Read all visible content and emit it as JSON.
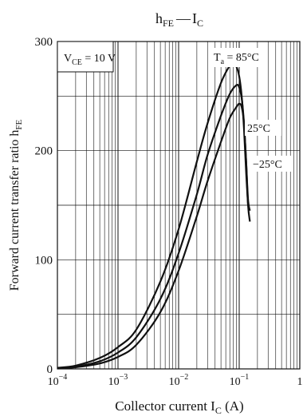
{
  "chart_data": {
    "type": "line",
    "title": "h_FE — I_C",
    "title_parts": {
      "h": "h",
      "h_sub": "FE",
      "dash": "—",
      "i": "I",
      "i_sub": "C"
    },
    "xlabel": "Collector current  I_C  (A)",
    "xlabel_parts": {
      "main": "Collector current  I",
      "sub": "C",
      "unit": "  (A)"
    },
    "ylabel": "Forward current transfer ratio  h_FE",
    "ylabel_parts": {
      "main": "Forward current transfer ratio  h",
      "sub": "FE"
    },
    "x_scale": "log",
    "xlim": [
      0.0001,
      1
    ],
    "ylim": [
      0,
      300
    ],
    "y_ticks": [
      0,
      100,
      200,
      300
    ],
    "y_tick_labels": [
      "0",
      "100",
      "200",
      "300"
    ],
    "x_ticks": [
      {
        "value": 0.0001,
        "base": "10",
        "exp": "−4"
      },
      {
        "value": 0.001,
        "base": "10",
        "exp": "−3"
      },
      {
        "value": 0.01,
        "base": "10",
        "exp": "−2"
      },
      {
        "value": 0.1,
        "base": "10",
        "exp": "−1"
      },
      {
        "value": 1,
        "base": "1",
        "exp": ""
      }
    ],
    "grid": true,
    "condition_label": {
      "main": "V",
      "sub": "CE",
      "rest": " = 10 V"
    },
    "series": [
      {
        "name": "Ta = 85°C",
        "label_parts": {
          "main": "T",
          "sub": "a",
          "rest": " = 85°C"
        },
        "points": [
          [
            0.0001,
            1
          ],
          [
            0.0002,
            3
          ],
          [
            0.0005,
            10
          ],
          [
            0.001,
            20
          ],
          [
            0.002,
            36
          ],
          [
            0.005,
            80
          ],
          [
            0.01,
            128
          ],
          [
            0.02,
            190
          ],
          [
            0.03,
            225
          ],
          [
            0.05,
            262
          ],
          [
            0.07,
            278
          ],
          [
            0.08,
            280
          ],
          [
            0.09,
            277
          ],
          [
            0.1,
            268
          ],
          [
            0.11,
            250
          ],
          [
            0.12,
            220
          ],
          [
            0.13,
            180
          ],
          [
            0.14,
            150
          ]
        ]
      },
      {
        "name": "25°C",
        "label_parts": {
          "main": "25°C",
          "sub": "",
          "rest": ""
        },
        "points": [
          [
            0.0001,
            0.5
          ],
          [
            0.0002,
            2
          ],
          [
            0.0005,
            7
          ],
          [
            0.001,
            15
          ],
          [
            0.002,
            29
          ],
          [
            0.005,
            64
          ],
          [
            0.01,
            106
          ],
          [
            0.02,
            160
          ],
          [
            0.03,
            196
          ],
          [
            0.05,
            232
          ],
          [
            0.07,
            252
          ],
          [
            0.09,
            260
          ],
          [
            0.1,
            258
          ],
          [
            0.11,
            248
          ],
          [
            0.12,
            225
          ],
          [
            0.13,
            190
          ],
          [
            0.14,
            150
          ],
          [
            0.15,
            135
          ]
        ]
      },
      {
        "name": "−25°C",
        "label_parts": {
          "main": "−25°C",
          "sub": "",
          "rest": ""
        },
        "points": [
          [
            0.0001,
            0.5
          ],
          [
            0.0002,
            1.5
          ],
          [
            0.0005,
            5
          ],
          [
            0.001,
            11
          ],
          [
            0.002,
            22
          ],
          [
            0.005,
            52
          ],
          [
            0.01,
            90
          ],
          [
            0.02,
            140
          ],
          [
            0.03,
            172
          ],
          [
            0.05,
            208
          ],
          [
            0.07,
            230
          ],
          [
            0.09,
            240
          ],
          [
            0.1,
            243
          ],
          [
            0.11,
            240
          ],
          [
            0.12,
            225
          ],
          [
            0.13,
            190
          ],
          [
            0.14,
            155
          ],
          [
            0.15,
            145
          ]
        ]
      }
    ]
  }
}
